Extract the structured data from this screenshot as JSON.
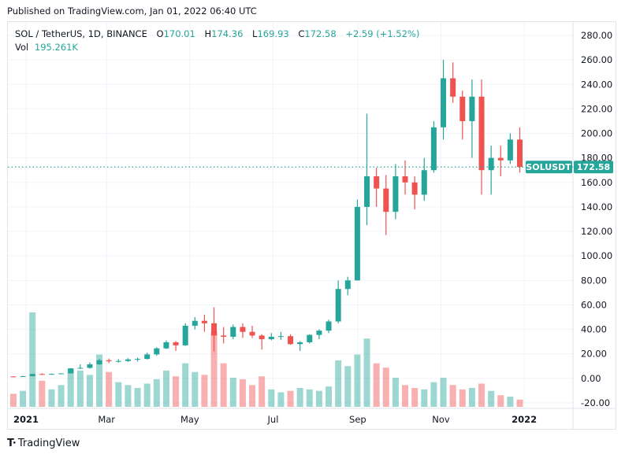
{
  "published": "Published on TradingView.com, Jan 01, 2022 06:40 UTC",
  "legend": {
    "symbol": "SOL / TetherUS, 1D, BINANCE",
    "o_label": "O",
    "o": "170.01",
    "h_label": "H",
    "h": "174.36",
    "l_label": "L",
    "l": "169.93",
    "c_label": "C",
    "c": "172.58",
    "change": "+2.59 (+1.52%)",
    "vol_label": "Vol",
    "vol": "195.261K"
  },
  "last_price": {
    "symbol_label": "SOLUSDT",
    "value_label": "172.58",
    "value": 172.58
  },
  "footer": {
    "brand": "TradingView",
    "logo_text": "TV"
  },
  "colors": {
    "up": "#26a69a",
    "down": "#ef5350",
    "grid": "#f0f3fa",
    "text": "#131722"
  },
  "chart_data": {
    "type": "candlestick",
    "interval_shown": "1D",
    "note_resolution": "weekly",
    "ylim": [
      -20,
      280
    ],
    "y_ticks": [
      "280.00",
      "260.00",
      "240.00",
      "220.00",
      "200.00",
      "180.00",
      "160.00",
      "140.00",
      "120.00",
      "100.00",
      "80.00",
      "60.00",
      "40.00",
      "20.00",
      "0.00",
      "-20.00"
    ],
    "x_ticks": [
      {
        "label": "2021",
        "date": "2021-01-01",
        "bold": true
      },
      {
        "label": "Mar",
        "date": "2021-03-01"
      },
      {
        "label": "May",
        "date": "2021-05-01"
      },
      {
        "label": "Jul",
        "date": "2021-07-01"
      },
      {
        "label": "Sep",
        "date": "2021-09-01"
      },
      {
        "label": "Nov",
        "date": "2021-11-01"
      },
      {
        "label": "2022",
        "date": "2022-01-01",
        "bold": true
      }
    ],
    "grid": true,
    "candles": [
      [
        "2020-12-21",
        1.6,
        1.8,
        1.4,
        1.5,
        900
      ],
      [
        "2020-12-28",
        1.5,
        2.2,
        1.4,
        1.8,
        1100
      ],
      [
        "2021-01-04",
        1.8,
        3.8,
        1.7,
        3.6,
        6500
      ],
      [
        "2021-01-11",
        3.6,
        4.2,
        2.9,
        3.5,
        1800
      ],
      [
        "2021-01-18",
        3.5,
        4.0,
        3.0,
        3.7,
        1200
      ],
      [
        "2021-01-25",
        3.7,
        4.3,
        3.4,
        4.1,
        1500
      ],
      [
        "2021-02-01",
        4.1,
        8.5,
        4.0,
        8.2,
        2600
      ],
      [
        "2021-02-08",
        8.2,
        11.5,
        7.8,
        8.6,
        2500
      ],
      [
        "2021-02-15",
        8.6,
        13.0,
        7.9,
        11.5,
        2200
      ],
      [
        "2021-02-22",
        11.5,
        16.0,
        11.0,
        14.8,
        3600
      ],
      [
        "2021-03-01",
        14.8,
        16.2,
        12.5,
        14.0,
        2400
      ],
      [
        "2021-03-08",
        14.0,
        15.8,
        13.0,
        14.2,
        1700
      ],
      [
        "2021-03-15",
        14.2,
        16.5,
        13.5,
        15.5,
        1500
      ],
      [
        "2021-03-22",
        15.5,
        17.0,
        13.8,
        15.9,
        1300
      ],
      [
        "2021-03-29",
        15.9,
        21.0,
        15.5,
        19.6,
        1600
      ],
      [
        "2021-04-05",
        19.6,
        25.5,
        18.5,
        24.5,
        1900
      ],
      [
        "2021-04-12",
        24.5,
        31.0,
        24.0,
        29.5,
        2500
      ],
      [
        "2021-04-19",
        29.5,
        30.5,
        22.5,
        27.0,
        2100
      ],
      [
        "2021-04-26",
        27.0,
        45.0,
        26.5,
        43.0,
        3000
      ],
      [
        "2021-05-03",
        43.0,
        50.0,
        40.0,
        47.0,
        2400
      ],
      [
        "2021-05-10",
        47.0,
        52.0,
        38.0,
        45.0,
        2200
      ],
      [
        "2021-05-17",
        45.0,
        58.0,
        22.0,
        35.0,
        5200
      ],
      [
        "2021-05-24",
        35.0,
        42.0,
        28.5,
        34.0,
        3000
      ],
      [
        "2021-05-31",
        34.0,
        44.0,
        32.0,
        42.0,
        2000
      ],
      [
        "2021-06-07",
        42.0,
        45.0,
        33.0,
        38.0,
        1900
      ],
      [
        "2021-06-14",
        38.0,
        43.0,
        33.0,
        35.0,
        1500
      ],
      [
        "2021-06-21",
        35.0,
        36.0,
        23.5,
        32.0,
        2100
      ],
      [
        "2021-06-28",
        32.0,
        37.0,
        31.0,
        34.0,
        1200
      ],
      [
        "2021-07-05",
        34.0,
        38.0,
        31.5,
        34.5,
        1000
      ],
      [
        "2021-07-12",
        34.5,
        36.0,
        27.5,
        28.0,
        1100
      ],
      [
        "2021-07-19",
        28.0,
        30.5,
        22.5,
        29.5,
        1300
      ],
      [
        "2021-07-26",
        29.5,
        36.0,
        28.5,
        35.5,
        1200
      ],
      [
        "2021-08-02",
        35.5,
        40.0,
        32.0,
        39.0,
        1100
      ],
      [
        "2021-08-09",
        39.0,
        48.0,
        37.0,
        46.5,
        1400
      ],
      [
        "2021-08-16",
        46.5,
        80.0,
        45.0,
        73.0,
        3200
      ],
      [
        "2021-08-23",
        73.0,
        83.0,
        68.0,
        80.0,
        2800
      ],
      [
        "2021-08-30",
        80.0,
        146.0,
        80.0,
        140.0,
        3600
      ],
      [
        "2021-09-06",
        140.0,
        216.0,
        125.0,
        165.0,
        4700
      ],
      [
        "2021-09-13",
        165.0,
        172.0,
        140.0,
        155.0,
        3000
      ],
      [
        "2021-09-20",
        155.0,
        166.0,
        117.0,
        136.0,
        2700
      ],
      [
        "2021-09-27",
        136.0,
        175.0,
        130.0,
        165.0,
        2000
      ],
      [
        "2021-10-04",
        165.0,
        178.0,
        150.0,
        160.0,
        1500
      ],
      [
        "2021-10-11",
        160.0,
        165.0,
        138.0,
        150.0,
        1300
      ],
      [
        "2021-10-18",
        150.0,
        180.0,
        145.0,
        170.0,
        1200
      ],
      [
        "2021-10-25",
        170.0,
        210.0,
        168.0,
        205.0,
        1700
      ],
      [
        "2021-11-01",
        205.0,
        260.0,
        195.0,
        245.0,
        2000
      ],
      [
        "2021-11-08",
        245.0,
        258.0,
        225.0,
        230.0,
        1500
      ],
      [
        "2021-11-15",
        230.0,
        235.0,
        195.0,
        210.0,
        1200
      ],
      [
        "2021-11-22",
        210.0,
        244.0,
        180.0,
        230.0,
        1300
      ],
      [
        "2021-11-29",
        230.0,
        244.0,
        150.0,
        170.0,
        1600
      ],
      [
        "2021-12-06",
        170.0,
        190.0,
        150.0,
        180.0,
        1100
      ],
      [
        "2021-12-13",
        180.0,
        190.0,
        165.0,
        178.0,
        800
      ],
      [
        "2021-12-20",
        178.0,
        200.0,
        175.0,
        195.0,
        700
      ],
      [
        "2021-12-27",
        195.0,
        205.0,
        168.0,
        172.58,
        500
      ]
    ],
    "candle_fields": [
      "week_start",
      "open",
      "high",
      "low",
      "close",
      "volume_k"
    ]
  }
}
